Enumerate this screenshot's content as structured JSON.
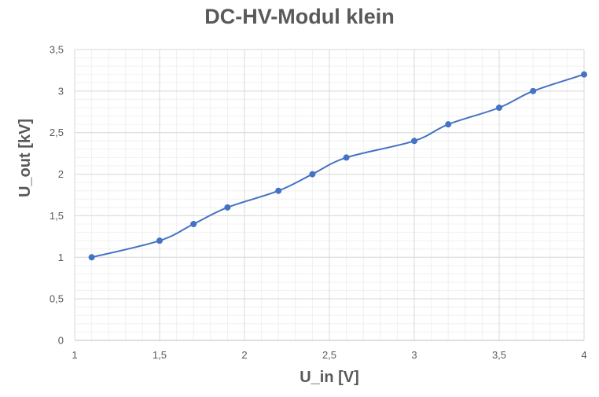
{
  "chart_data": {
    "type": "scatter",
    "title": "DC-HV-Modul klein",
    "xlabel": "U_in [V]",
    "ylabel": "U_out [kV]",
    "xlim": [
      1,
      4
    ],
    "ylim": [
      0,
      3.5
    ],
    "x_ticks": [
      "1",
      "1,5",
      "2",
      "2,5",
      "3",
      "3,5",
      "4"
    ],
    "y_ticks": [
      "0",
      "0,5",
      "1",
      "1,5",
      "2",
      "2,5",
      "3",
      "3,5"
    ],
    "grid": true,
    "minor_grid": true,
    "smooth_line": true,
    "line_color": "#4472C4",
    "series": [
      {
        "x": [
          1.1,
          1.5,
          1.7,
          1.9,
          2.2,
          2.4,
          2.6,
          3.0,
          3.2,
          3.5,
          3.7,
          4.0
        ],
        "y": [
          1.0,
          1.2,
          1.4,
          1.6,
          1.8,
          2.0,
          2.2,
          2.4,
          2.6,
          2.8,
          3.0,
          3.2
        ]
      }
    ]
  }
}
